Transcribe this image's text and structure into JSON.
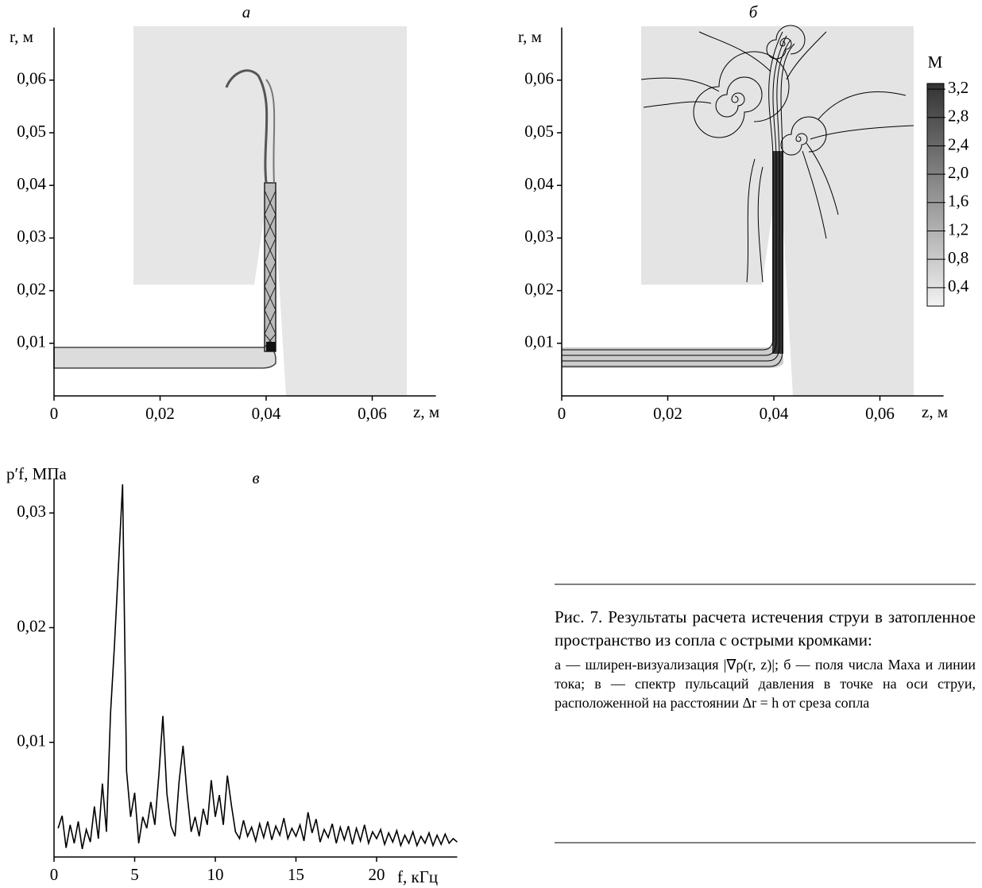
{
  "chart_data": [
    {
      "type": "field",
      "title": "а",
      "xlabel": "z, м",
      "ylabel": "r, м",
      "xlim": [
        0,
        0.072
      ],
      "ylim": [
        0,
        0.07
      ],
      "xticks": [
        0,
        {
          "value": 0.02,
          "label": "0,02"
        },
        {
          "value": 0.04,
          "label": "0,04"
        },
        {
          "value": 0.06,
          "label": "0,06"
        }
      ],
      "yticks": [
        {
          "value": 0.01,
          "label": "0,01"
        },
        {
          "value": 0.02,
          "label": "0,02"
        },
        {
          "value": 0.03,
          "label": "0,03"
        },
        {
          "value": 0.04,
          "label": "0,04"
        },
        {
          "value": 0.05,
          "label": "0,05"
        },
        {
          "value": 0.06,
          "label": "0,06"
        }
      ]
    },
    {
      "type": "field",
      "title": "б",
      "xlabel": "z, м",
      "ylabel": "r, м",
      "xlim": [
        0,
        0.072
      ],
      "ylim": [
        0,
        0.07
      ],
      "xticks": [
        0,
        {
          "value": 0.02,
          "label": "0,02"
        },
        {
          "value": 0.04,
          "label": "0,04"
        },
        {
          "value": 0.06,
          "label": "0,06"
        }
      ],
      "yticks": [
        {
          "value": 0.01,
          "label": "0,01"
        },
        {
          "value": 0.02,
          "label": "0,02"
        },
        {
          "value": 0.03,
          "label": "0,03"
        },
        {
          "value": 0.04,
          "label": "0,04"
        },
        {
          "value": 0.05,
          "label": "0,05"
        },
        {
          "value": 0.06,
          "label": "0,06"
        }
      ],
      "colorbar": {
        "label": "М",
        "lim": [
          0.14,
          3.28
        ],
        "ticks": [
          {
            "value": 0.4,
            "label": "0,4"
          },
          {
            "value": 0.8,
            "label": "0,8"
          },
          {
            "value": 1.2,
            "label": "1,2"
          },
          {
            "value": 1.6,
            "label": "1,6"
          },
          {
            "value": 2.0,
            "label": "2,0"
          },
          {
            "value": 2.4,
            "label": "2,4"
          },
          {
            "value": 2.8,
            "label": "2,8"
          },
          {
            "value": 3.2,
            "label": "3,2"
          }
        ]
      }
    },
    {
      "type": "line",
      "title": "в",
      "xlabel": "f, кГц",
      "ylabel": "p′f, МПа",
      "color": "#000000",
      "xlim": [
        0,
        25
      ],
      "ylim": [
        0,
        0.033
      ],
      "xticks": [
        0,
        5,
        10,
        15,
        20
      ],
      "yticks": [
        {
          "value": 0.01,
          "label": "0,01"
        },
        {
          "value": 0.02,
          "label": "0,02"
        },
        {
          "value": 0.03,
          "label": "0,03"
        }
      ],
      "x": [
        0.25,
        0.5,
        0.75,
        1.0,
        1.25,
        1.5,
        1.75,
        2.0,
        2.25,
        2.5,
        2.75,
        3.0,
        3.25,
        3.5,
        3.75,
        4.0,
        4.25,
        4.5,
        4.75,
        5.0,
        5.25,
        5.5,
        5.75,
        6.0,
        6.25,
        6.5,
        6.75,
        7.0,
        7.25,
        7.5,
        7.75,
        8.0,
        8.25,
        8.5,
        8.75,
        9.0,
        9.25,
        9.5,
        9.75,
        10.0,
        10.25,
        10.5,
        10.75,
        11.0,
        11.25,
        11.5,
        11.75,
        12.0,
        12.25,
        12.5,
        12.75,
        13.0,
        13.25,
        13.5,
        13.75,
        14.0,
        14.25,
        14.5,
        14.75,
        15.0,
        15.25,
        15.5,
        15.75,
        16.0,
        16.25,
        16.5,
        16.75,
        17.0,
        17.25,
        17.5,
        17.75,
        18.0,
        18.25,
        18.5,
        18.75,
        19.0,
        19.25,
        19.5,
        19.75,
        20.0,
        20.25,
        20.5,
        20.75,
        21.0,
        21.25,
        21.5,
        21.75,
        22.0,
        22.25,
        22.5,
        22.75,
        23.0,
        23.25,
        23.5,
        23.75,
        24.0,
        24.25,
        24.5,
        24.75,
        25.0
      ],
      "values": [
        0.0025,
        0.0036,
        0.0008,
        0.0028,
        0.0012,
        0.0031,
        0.0007,
        0.0024,
        0.0013,
        0.0044,
        0.0016,
        0.0064,
        0.0022,
        0.0125,
        0.0185,
        0.0255,
        0.0325,
        0.0075,
        0.0035,
        0.0056,
        0.0012,
        0.0035,
        0.0025,
        0.0048,
        0.0028,
        0.0072,
        0.0123,
        0.0055,
        0.0027,
        0.0018,
        0.0065,
        0.0097,
        0.0055,
        0.0022,
        0.0035,
        0.0018,
        0.0042,
        0.0028,
        0.0067,
        0.0035,
        0.0054,
        0.0028,
        0.0071,
        0.0045,
        0.0022,
        0.0016,
        0.0032,
        0.0018,
        0.0026,
        0.0014,
        0.0029,
        0.0017,
        0.0031,
        0.0015,
        0.0027,
        0.0019,
        0.0034,
        0.0016,
        0.0025,
        0.0018,
        0.0028,
        0.0014,
        0.0039,
        0.0021,
        0.0033,
        0.0013,
        0.0024,
        0.0017,
        0.0029,
        0.0012,
        0.0026,
        0.0015,
        0.0027,
        0.0011,
        0.0025,
        0.0014,
        0.0028,
        0.0012,
        0.0022,
        0.0016,
        0.0024,
        0.0011,
        0.0021,
        0.0013,
        0.0023,
        0.001,
        0.0019,
        0.0012,
        0.0022,
        0.001,
        0.0018,
        0.0012,
        0.0021,
        0.001,
        0.0019,
        0.0011,
        0.002,
        0.0012,
        0.0016,
        0.0013
      ]
    }
  ],
  "caption": {
    "title": "Рис. 7. Результаты расчета истечения струи в затопленное пространство из сопла с острыми кромками:",
    "text": "а — шлирен-визуализация |∇ρ(r, z)|; б — поля числа Маха и линии тока; в — спектр пульсаций давления в точке на оси струи, расположенной на расстоянии Δr = h от среза сопла"
  }
}
